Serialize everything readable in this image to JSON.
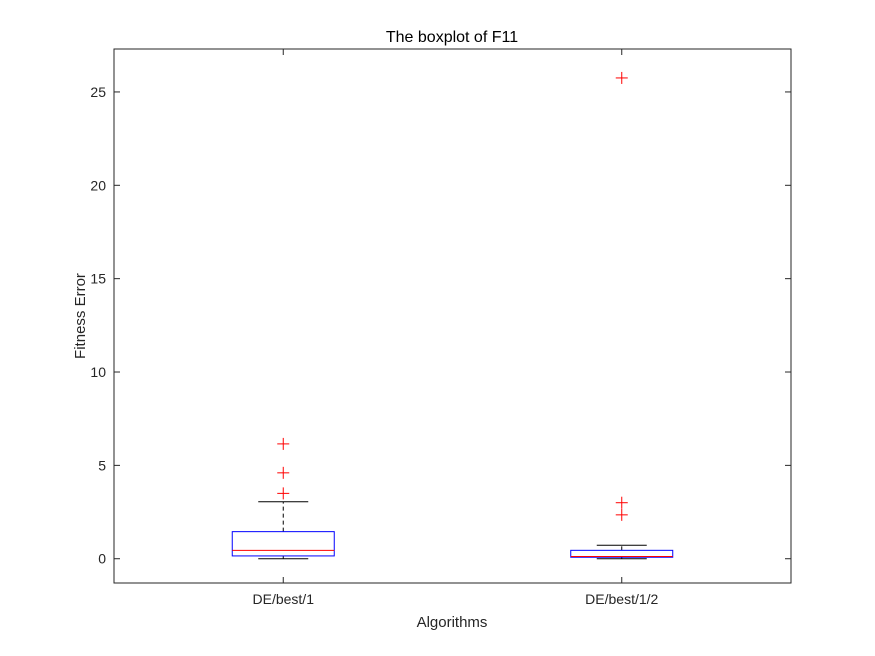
{
  "chart_data": {
    "type": "boxplot",
    "title": "The boxplot of F11",
    "xlabel": "Algorithms",
    "ylabel": "Fitness Error",
    "ylim": [
      -1.3,
      27.3
    ],
    "yticks": [
      0,
      5,
      10,
      15,
      20,
      25
    ],
    "categories": [
      "DE/best/1",
      "DE/best/1/2"
    ],
    "boxes": [
      {
        "category": "DE/best/1",
        "whisker_low": 0.0,
        "q1": 0.15,
        "median": 0.45,
        "q3": 1.45,
        "whisker_high": 3.05,
        "outliers": [
          3.5,
          4.6,
          6.15
        ]
      },
      {
        "category": "DE/best/1/2",
        "whisker_low": 0.0,
        "q1": 0.08,
        "median": 0.12,
        "q3": 0.45,
        "whisker_high": 0.72,
        "outliers": [
          2.35,
          3.0,
          25.75
        ]
      }
    ],
    "grid": false,
    "colors": {
      "box": "#0000ff",
      "median": "#ff0000",
      "whisker": "#000000",
      "outlier": "#ff0000",
      "axes": "#262626"
    }
  }
}
